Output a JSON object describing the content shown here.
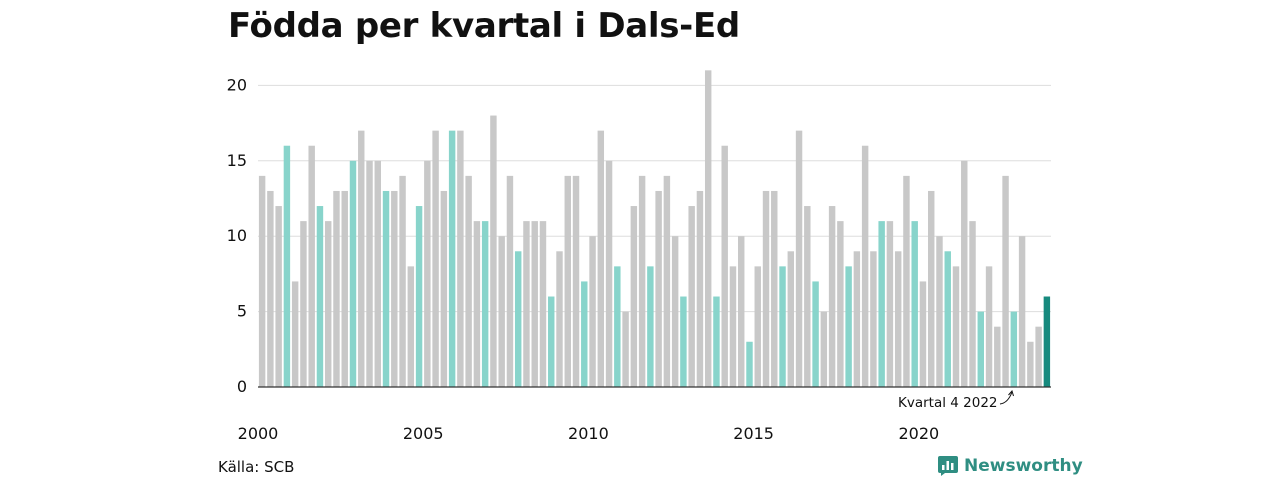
{
  "title": "Födda per kvartal i Dals-Ed",
  "source": "Källa: SCB",
  "brand": {
    "name": "Newsworthy",
    "icon": "newsworthy-logo-icon"
  },
  "colors": {
    "bar": "#c8c8c8",
    "q4_bar": "#88d4cb",
    "latest_bar": "#178a7e",
    "gridline": "#dddddd",
    "axis": "#333333",
    "brand": "#2f8e82"
  },
  "chart_data": {
    "type": "bar",
    "title": "Födda per kvartal i Dals-Ed",
    "xlabel": "",
    "ylabel": "",
    "ylim": [
      0,
      21
    ],
    "y_ticks": [
      0,
      5,
      10,
      15,
      20
    ],
    "x_tick_labels": [
      "2000",
      "2005",
      "2010",
      "2015",
      "2020"
    ],
    "grid": true,
    "legend": "none",
    "highlight": "Q4 of each year in light teal; latest quarter in dark teal",
    "annotation": "Kvartal 4 2022",
    "categories": [
      "2000 K1",
      "2000 K2",
      "2000 K3",
      "2000 K4",
      "2001 K1",
      "2001 K2",
      "2001 K3",
      "2001 K4",
      "2002 K1",
      "2002 K2",
      "2002 K3",
      "2002 K4",
      "2003 K1",
      "2003 K2",
      "2003 K3",
      "2003 K4",
      "2004 K1",
      "2004 K2",
      "2004 K3",
      "2004 K4",
      "2005 K1",
      "2005 K2",
      "2005 K3",
      "2005 K4",
      "2006 K1",
      "2006 K2",
      "2006 K3",
      "2006 K4",
      "2007 K1",
      "2007 K2",
      "2007 K3",
      "2007 K4",
      "2008 K1",
      "2008 K2",
      "2008 K3",
      "2008 K4",
      "2009 K1",
      "2009 K2",
      "2009 K3",
      "2009 K4",
      "2010 K1",
      "2010 K2",
      "2010 K3",
      "2010 K4",
      "2011 K1",
      "2011 K2",
      "2011 K3",
      "2011 K4",
      "2012 K1",
      "2012 K2",
      "2012 K3",
      "2012 K4",
      "2013 K1",
      "2013 K2",
      "2013 K3",
      "2013 K4",
      "2014 K1",
      "2014 K2",
      "2014 K3",
      "2014 K4",
      "2015 K1",
      "2015 K2",
      "2015 K3",
      "2015 K4",
      "2016 K1",
      "2016 K2",
      "2016 K3",
      "2016 K4",
      "2017 K1",
      "2017 K2",
      "2017 K3",
      "2017 K4",
      "2018 K1",
      "2018 K2",
      "2018 K3",
      "2018 K4",
      "2019 K1",
      "2019 K2",
      "2019 K3",
      "2019 K4",
      "2020 K1",
      "2020 K2",
      "2020 K3",
      "2020 K4",
      "2021 K1",
      "2021 K2",
      "2021 K3",
      "2021 K4",
      "2022 K1",
      "2022 K2",
      "2022 K3",
      "2022 K4",
      "2023 K1",
      "2023 K2",
      "2023 K3",
      "2023 K4"
    ],
    "values": [
      14,
      13,
      12,
      16,
      7,
      11,
      16,
      12,
      11,
      13,
      13,
      15,
      17,
      15,
      15,
      13,
      13,
      14,
      8,
      12,
      15,
      17,
      13,
      17,
      17,
      14,
      11,
      11,
      18,
      10,
      14,
      9,
      11,
      11,
      11,
      6,
      9,
      14,
      14,
      7,
      10,
      17,
      15,
      8,
      5,
      12,
      14,
      8,
      13,
      14,
      10,
      6,
      12,
      13,
      21,
      6,
      16,
      8,
      10,
      3,
      8,
      13,
      13,
      8,
      9,
      17,
      12,
      7,
      5,
      12,
      11,
      8,
      9,
      16,
      9,
      11,
      11,
      9,
      14,
      11,
      7,
      13,
      10,
      9,
      8,
      15,
      11,
      5,
      8,
      4,
      14,
      5,
      10,
      3,
      4,
      6
    ]
  }
}
